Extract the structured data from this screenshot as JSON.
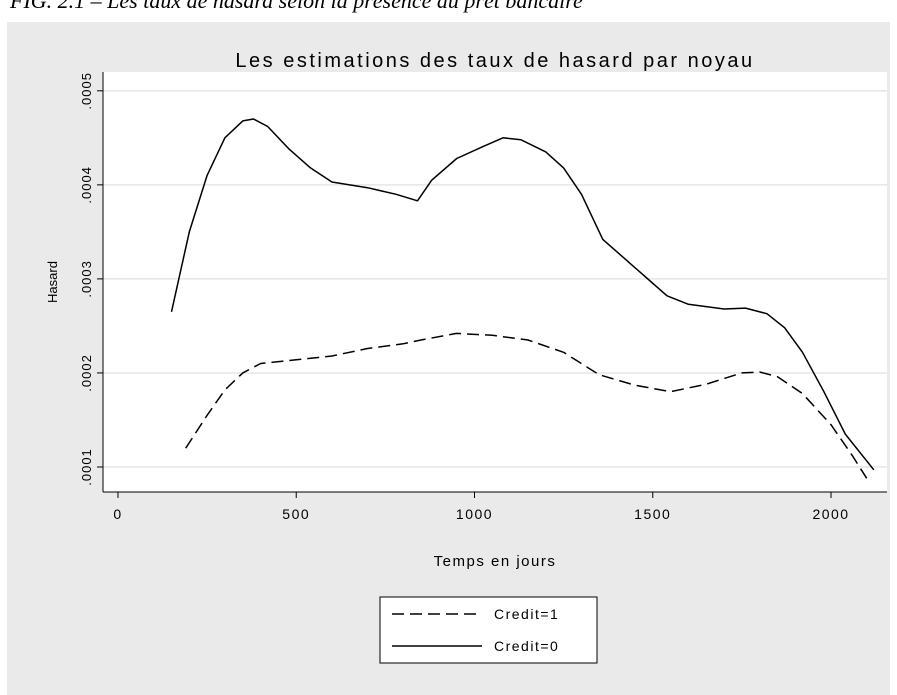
{
  "caption": "FIG. 2.1 – Les taux de hasard selon la présence du prêt bancaire",
  "chart_data": {
    "type": "line",
    "title": "Les estimations des taux de hasard par noyau",
    "x_label": "Temps en jours",
    "y_label": "Hasard",
    "xlim": [
      -42,
      2157
    ],
    "xticks": [
      0,
      500,
      1000,
      1500,
      2000
    ],
    "ylim": [
      7.34e-05,
      0.00052
    ],
    "yticks": [
      {
        "value": 0.0001,
        "label": ".0001"
      },
      {
        "value": 0.0002,
        "label": ".0002"
      },
      {
        "value": 0.0003,
        "label": ".0003"
      },
      {
        "value": 0.0004,
        "label": ".0004"
      },
      {
        "value": 0.0005,
        "label": ".0005"
      }
    ],
    "grid": true,
    "legend_position": "bottom",
    "series": [
      {
        "name": "Credit=1",
        "color": "#000000",
        "line_style": "dashed",
        "x": [
          190,
          250,
          300,
          350,
          400,
          500,
          600,
          700,
          800,
          850,
          950,
          1050,
          1150,
          1250,
          1350,
          1450,
          1550,
          1650,
          1750,
          1800,
          1850,
          1920,
          2000,
          2060,
          2100
        ],
        "values": [
          0.00012,
          0.000155,
          0.000182,
          0.0002,
          0.00021,
          0.000214,
          0.000218,
          0.000226,
          0.000231,
          0.000235,
          0.000242,
          0.00024,
          0.000235,
          0.000222,
          0.000198,
          0.000187,
          0.00018,
          0.000188,
          0.0002,
          0.000201,
          0.000196,
          0.000178,
          0.000145,
          0.000112,
          8.8e-05
        ]
      },
      {
        "name": "Credit=0",
        "color": "#000000",
        "line_style": "solid",
        "x": [
          150,
          200,
          250,
          300,
          350,
          380,
          420,
          480,
          540,
          600,
          700,
          780,
          840,
          880,
          950,
          1020,
          1080,
          1130,
          1200,
          1250,
          1300,
          1360,
          1420,
          1480,
          1540,
          1600,
          1700,
          1760,
          1820,
          1870,
          1920,
          1980,
          2040,
          2120
        ],
        "values": [
          0.000265,
          0.00035,
          0.00041,
          0.00045,
          0.000468,
          0.00047,
          0.000462,
          0.000438,
          0.000418,
          0.000403,
          0.000397,
          0.00039,
          0.000383,
          0.000405,
          0.000428,
          0.00044,
          0.00045,
          0.000448,
          0.000435,
          0.000418,
          0.00039,
          0.000342,
          0.000322,
          0.000302,
          0.000282,
          0.000273,
          0.000268,
          0.000269,
          0.000263,
          0.000248,
          0.000222,
          0.00018,
          0.000135,
          9.7e-05
        ]
      }
    ]
  }
}
